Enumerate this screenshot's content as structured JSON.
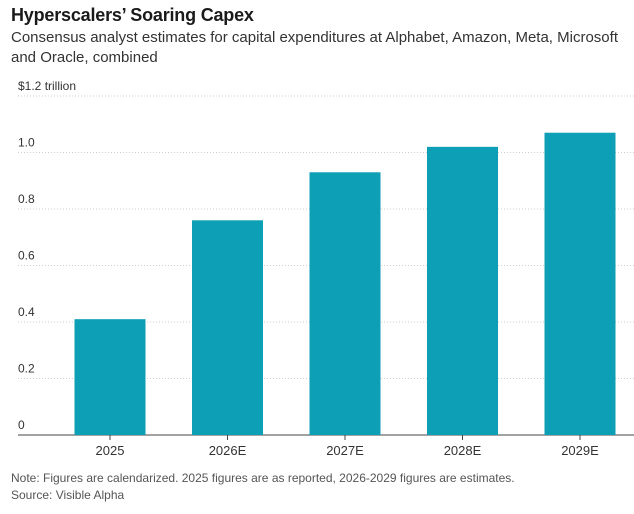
{
  "header": {
    "title": "Hyperscalers’ Soaring Capex",
    "subtitle": "Consensus analyst estimates for capital expenditures at Alphabet, Amazon, Meta, Microsoft and Oracle, combined"
  },
  "footer": {
    "note": "Note: Figures are calendarized. 2025 figures are as reported, 2026-2029 figures are estimates.",
    "source": "Source: Visible Alpha"
  },
  "chart_data": {
    "type": "bar",
    "title": "Hyperscalers’ Soaring Capex",
    "subtitle": "Consensus analyst estimates for capital expenditures at Alphabet, Amazon, Meta, Microsoft and Oracle, combined",
    "categories": [
      "2025",
      "2026E",
      "2027E",
      "2028E",
      "2029E"
    ],
    "values": [
      0.41,
      0.76,
      0.93,
      1.02,
      1.07
    ],
    "ylim": [
      0,
      1.2
    ],
    "yticks": [
      0,
      0.2,
      0.4,
      0.6,
      0.8,
      1.0,
      1.2
    ],
    "ytick_labels": [
      "0",
      "0.2",
      "0.4",
      "0.6",
      "0.8",
      "1.0",
      "$1.2 trillion"
    ],
    "grid": true,
    "bar_color": "#0d9fb5"
  }
}
